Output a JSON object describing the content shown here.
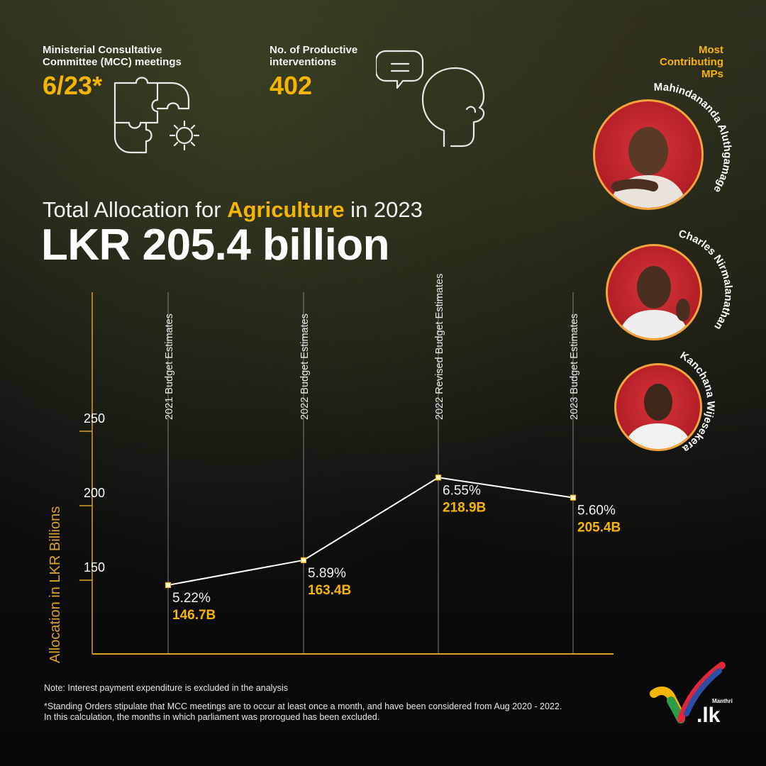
{
  "stats": {
    "mcc_label_line1": "Ministerial Consultative",
    "mcc_label_line2": "Committee (MCC) meetings",
    "mcc_value": "6/23*",
    "interventions_label_line1": "No. of Productive",
    "interventions_label_line2": "interventions",
    "interventions_value": "402"
  },
  "mps": {
    "heading_line1": "Most",
    "heading_line2": "Contributing",
    "heading_line3": "MPs",
    "list": [
      {
        "name": "Mahindananda Aluthgamage"
      },
      {
        "name": "Charles Nirmalanathan"
      },
      {
        "name": "Kanchana Wijesekera"
      }
    ]
  },
  "headline": {
    "prefix": "Total Allocation for ",
    "highlight": "Agriculture",
    "suffix": " in 2023",
    "amount": "LKR 205.4 billion"
  },
  "chart_data": {
    "type": "line",
    "ylabel": "Allocation in LKR Billions",
    "yticks": [
      150,
      200,
      250
    ],
    "categories": [
      "2021 Budget Estimates",
      "2022 Budget Estimates",
      "2022 Revised Budget Estimates",
      "2023 Budget Estimates"
    ],
    "series": [
      {
        "values": [
          146.7,
          163.4,
          218.9,
          205.4
        ],
        "value_labels": [
          "146.7B",
          "163.4B",
          "218.9B",
          "205.4B"
        ],
        "percent_labels": [
          "5.22%",
          "5.89%",
          "6.55%",
          "5.60%"
        ]
      }
    ],
    "colors": {
      "line": "#ffffff",
      "accent": "#f7b500",
      "axis": "#d7a227"
    }
  },
  "notes": {
    "note1": "Note: Interest payment expenditure is excluded in the analysis",
    "note2_line1": "*Standing Orders stipulate that MCC meetings are to occur at least once a month, and have been considered from Aug 2020 - 2022.",
    "note2_line2": "In this calculation, the months in which parliament was prorogued has been excluded."
  },
  "logo": {
    "brand_small": "Manthri",
    "brand_big": ".lk"
  }
}
